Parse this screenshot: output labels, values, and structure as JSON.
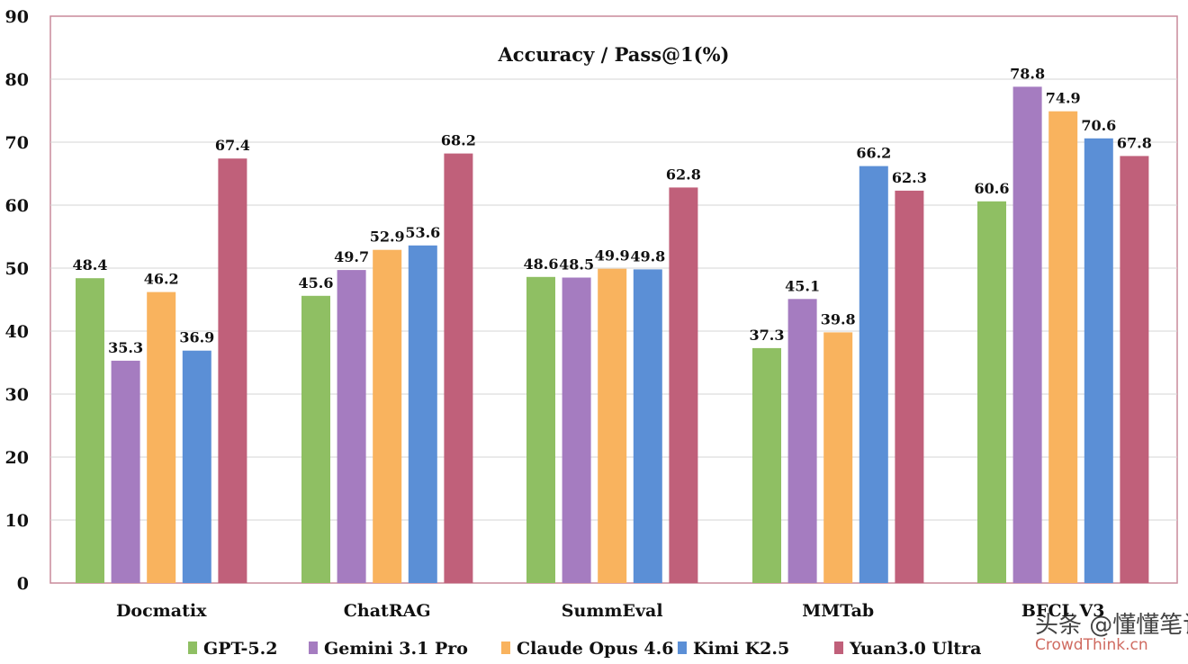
{
  "chart_data": {
    "type": "bar",
    "title": "Accuracy / Pass@1(%)",
    "xlabel": "",
    "ylabel": "",
    "ylim": [
      0,
      90
    ],
    "yticks": [
      0,
      10,
      20,
      30,
      40,
      50,
      60,
      70,
      80,
      90
    ],
    "categories": [
      "Docmatix",
      "ChatRAG",
      "SummEval",
      "MMTab",
      "BFCL V3"
    ],
    "series": [
      {
        "name": "GPT-5.2",
        "color": "#8fbf63",
        "values": [
          48.4,
          45.6,
          48.6,
          37.3,
          60.6
        ]
      },
      {
        "name": "Gemini 3.1 Pro",
        "color": "#a57cc0",
        "values": [
          35.3,
          49.7,
          48.5,
          45.1,
          78.8
        ]
      },
      {
        "name": "Claude Opus 4.6",
        "color": "#f9b35e",
        "values": [
          46.2,
          52.9,
          49.9,
          39.8,
          74.9
        ]
      },
      {
        "name": "Kimi K2.5",
        "color": "#5b8fd6",
        "values": [
          36.9,
          53.6,
          49.8,
          66.2,
          70.6
        ]
      },
      {
        "name": "Yuan3.0 Ultra",
        "color": "#c0607a",
        "values": [
          67.4,
          68.2,
          62.8,
          62.3,
          67.8
        ]
      }
    ],
    "grid": true,
    "legend_position": "bottom"
  },
  "watermark": {
    "text": "头条 @懂懂笔记",
    "url": "CrowdThink.cn"
  }
}
